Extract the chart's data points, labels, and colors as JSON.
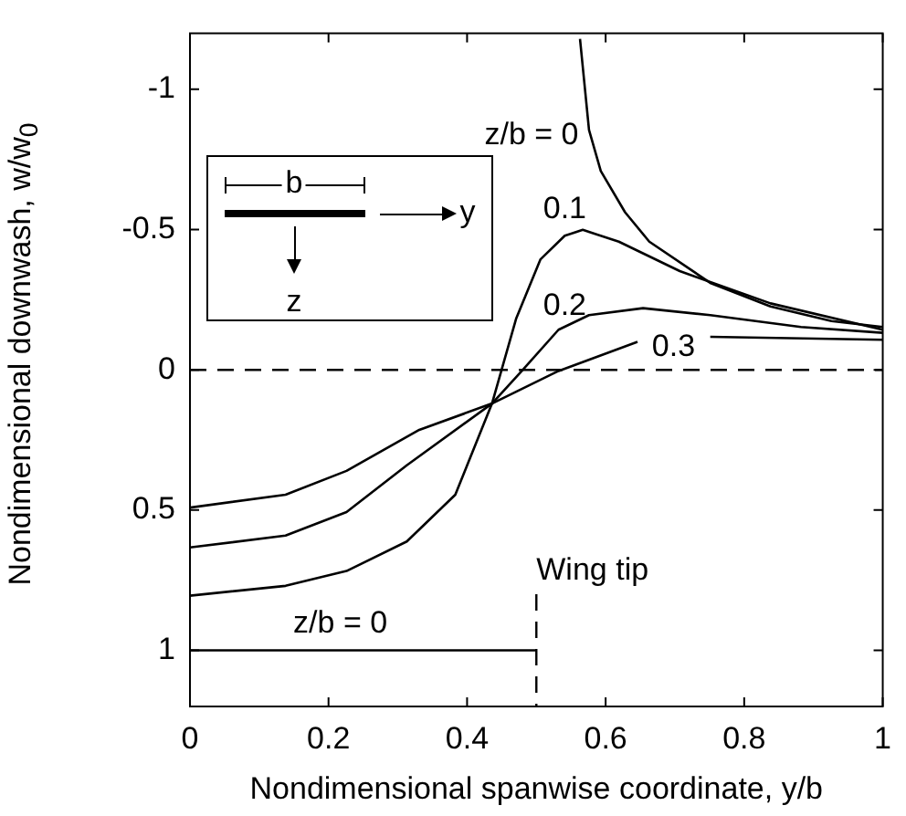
{
  "chart_data": {
    "type": "line",
    "xlabel": "Nondimensional spanwise coordinate, y/b",
    "ylabel": "Nondimensional downwash, w/w$_{0}$",
    "xlim": [
      0,
      1
    ],
    "xticks": [
      0,
      0.2,
      0.4,
      0.6,
      0.8,
      1
    ],
    "ylim": [
      1.2,
      -1.2
    ],
    "yticks": [
      -1,
      -0.5,
      0,
      0.5,
      1
    ],
    "grid": false,
    "legend": false,
    "marker": "none",
    "line_style": "solid",
    "series": [
      {
        "name": "z/b = 0",
        "color": "#000000",
        "x": [
          0,
          0.5
        ],
        "values": [
          1,
          1
        ]
      },
      {
        "name": "z/b = 0",
        "color": "#000000",
        "x": [
          0.563,
          0.576,
          0.593,
          0.628,
          0.663,
          0.751,
          0.838,
          0.926,
          1
        ],
        "values": [
          -1.18,
          -0.855,
          -0.709,
          -0.562,
          -0.457,
          -0.31,
          -0.226,
          -0.174,
          -0.153
        ]
      },
      {
        "name": "0.1",
        "color": "#000000",
        "x": [
          0,
          0.138,
          0.226,
          0.313,
          0.383,
          0.436,
          0.471,
          0.506,
          0.541,
          0.567,
          0.619,
          0.707,
          0.838,
          1
        ],
        "values": [
          0.805,
          0.77,
          0.717,
          0.612,
          0.445,
          0.12,
          -0.184,
          -0.394,
          -0.478,
          -0.499,
          -0.457,
          -0.352,
          -0.237,
          -0.143
        ]
      },
      {
        "name": "0.2",
        "color": "#000000",
        "x": [
          0,
          0.138,
          0.226,
          0.313,
          0.436,
          0.479,
          0.532,
          0.576,
          0.654,
          0.751,
          0.882,
          1
        ],
        "values": [
          0.633,
          0.591,
          0.507,
          0.34,
          0.12,
          0.004,
          -0.143,
          -0.195,
          -0.22,
          -0.195,
          -0.153,
          -0.132
        ]
      },
      {
        "name": "0.3",
        "color": "#000000",
        "x": [
          0,
          0.138,
          0.226,
          0.331,
          0.436,
          0.532,
          0.646,
          0.7,
          0.751,
          1
        ],
        "values": [
          0.491,
          0.445,
          0.36,
          0.214,
          0.12,
          0.004,
          -0.1,
          null,
          -0.118,
          -0.107
        ]
      }
    ],
    "ref_lines": [
      {
        "axis": "y",
        "value": 0,
        "line_style": "dashed",
        "color": "#000000"
      },
      {
        "axis": "x",
        "value": 0.5,
        "label": "Wing tip",
        "line_style": "dashed",
        "color": "#000000"
      }
    ],
    "annotations": [
      "b",
      "y",
      "z"
    ]
  }
}
